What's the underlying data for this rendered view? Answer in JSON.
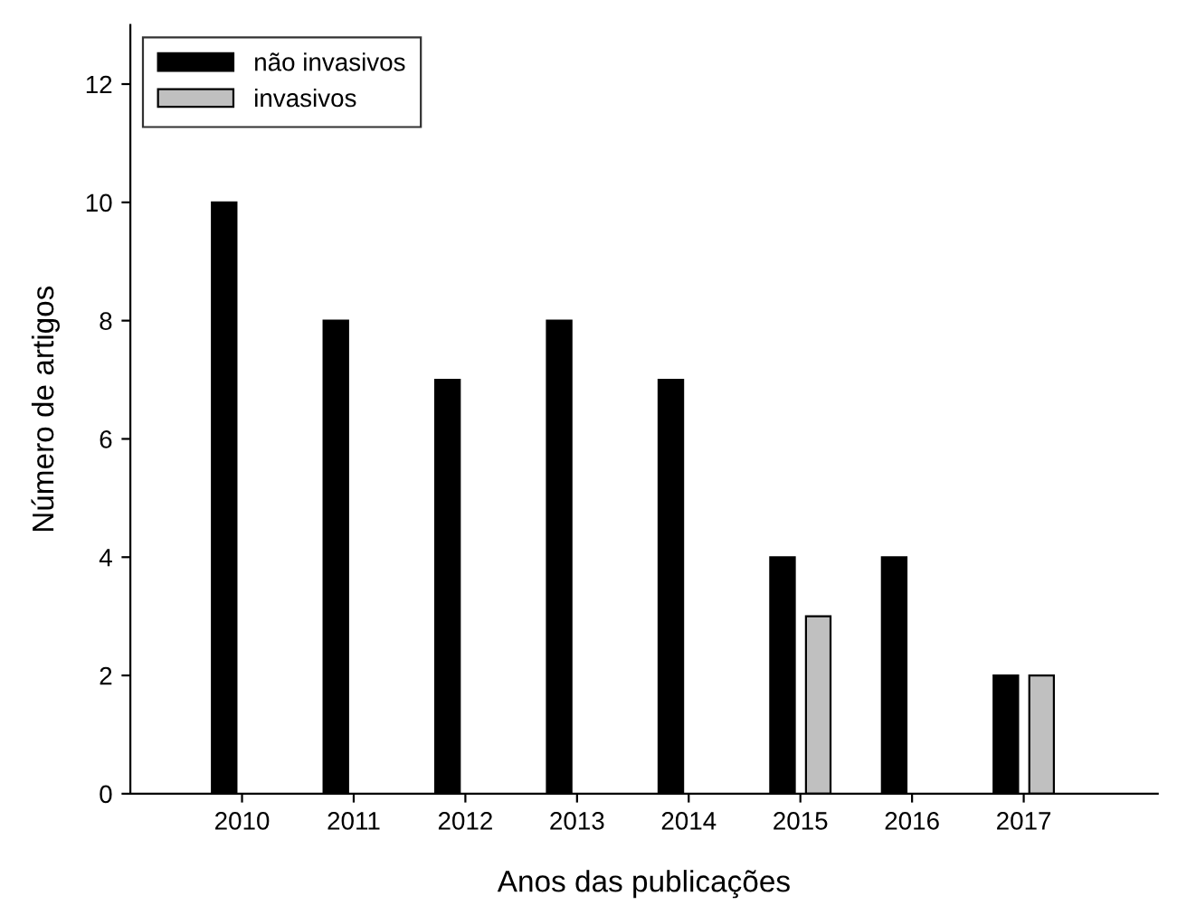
{
  "chart_data": {
    "type": "bar",
    "xlabel": "Anos das publicações",
    "ylabel": "Número de artigos",
    "categories": [
      "2010",
      "2011",
      "2012",
      "2013",
      "2014",
      "2015",
      "2016",
      "2017"
    ],
    "series": [
      {
        "name": "não invasivos",
        "color": "#000000",
        "values": [
          10,
          8,
          7,
          8,
          7,
          4,
          4,
          2
        ]
      },
      {
        "name": "invasivos",
        "color": "#c0c0c0",
        "values": [
          null,
          null,
          null,
          null,
          null,
          3,
          null,
          2
        ]
      }
    ],
    "ylim": [
      0,
      13
    ],
    "yticks": [
      0,
      2,
      4,
      6,
      8,
      10,
      12
    ],
    "grid": false,
    "legend": "top left"
  }
}
